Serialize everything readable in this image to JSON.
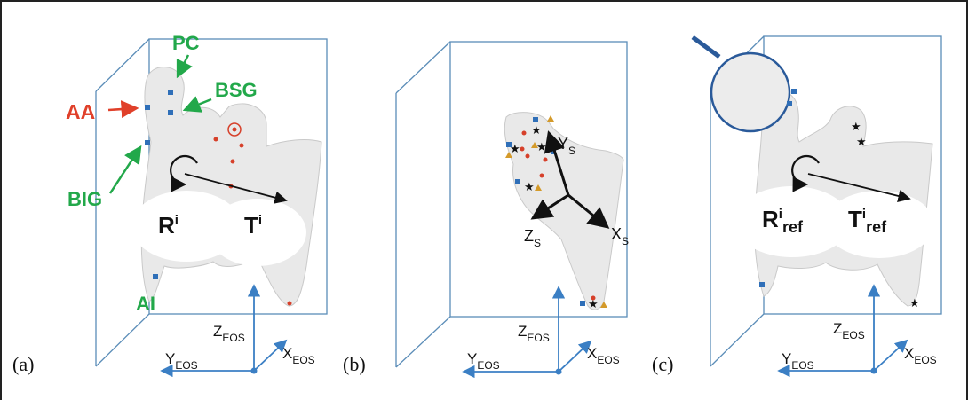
{
  "colors": {
    "box": "#5b8db8",
    "axis": "#3b7fc4",
    "bone": "#e9e9e9",
    "bone_edge": "#c9c9c9",
    "green_label": "#22a84a",
    "red_label": "#e0402a",
    "square_marker": "#2f6fb8",
    "triangle_marker": "#d49a2a",
    "dot_marker": "#d6402a",
    "star_marker": "#111111",
    "arrow": "#111111"
  },
  "panel_a": {
    "tag": "(a)",
    "landmarks": {
      "pc": "PC",
      "bsg": "BSG",
      "aa": "AA",
      "big": "BIG",
      "ai": "AI"
    },
    "rotation": {
      "base": "R",
      "sup": "i"
    },
    "translation": {
      "base": "T",
      "sup": "i"
    },
    "axes": {
      "z": "Z",
      "z_sub": "EOS",
      "y": "Y",
      "y_sub": "EOS",
      "x": "X",
      "x_sub": "EOS"
    }
  },
  "panel_b": {
    "tag": "(b)",
    "local_axes": {
      "y": "Y",
      "y_sub": "S",
      "z": "Z",
      "z_sub": "S",
      "x": "X",
      "x_sub": "S"
    },
    "axes": {
      "z": "Z",
      "z_sub": "EOS",
      "y": "Y",
      "y_sub": "EOS",
      "x": "X",
      "x_sub": "EOS"
    }
  },
  "panel_c": {
    "tag": "(c)",
    "rotation": {
      "base": "R",
      "sup": "i",
      "sub": "ref"
    },
    "translation": {
      "base": "T",
      "sup": "i",
      "sub": "ref"
    },
    "axes": {
      "z": "Z",
      "z_sub": "EOS",
      "y": "Y",
      "y_sub": "EOS",
      "x": "X",
      "x_sub": "EOS"
    }
  },
  "icons": [
    "rotation-arrow-icon",
    "translation-arrow-icon",
    "square-marker-icon",
    "triangle-marker-icon",
    "dot-marker-icon",
    "star-marker-icon"
  ]
}
